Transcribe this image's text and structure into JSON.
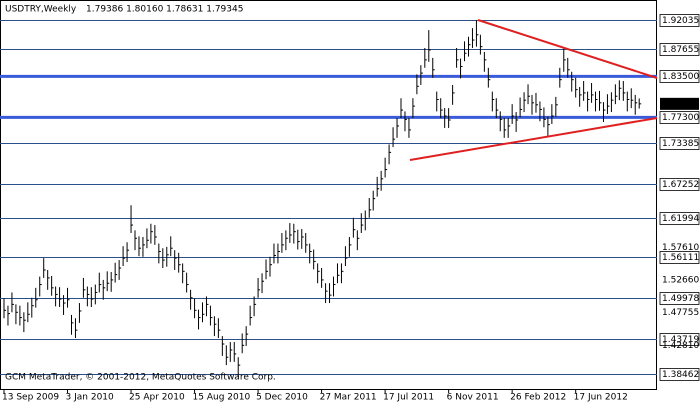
{
  "chart_data": {
    "type": "ohlc",
    "title": "USDTRY,Weekly",
    "subtitle": "1.79386 1.80160 1.78631 1.79345",
    "footer": "GCM MetaTrader, © 2001-2012, MetaQuotes Software Corp.",
    "color": "#000000",
    "grid": true,
    "ylim": [
      1.3604,
      1.9506
    ],
    "yticks": [
      1.92035,
      1.87655,
      {
        "value": 1.835,
        "label": "1.83500"
      },
      {
        "value": 1.773,
        "label": "1.77300"
      },
      1.73385,
      1.67252,
      1.61994,
      1.56111,
      1.49978,
      1.43719,
      1.38462
    ],
    "key_levels": [
      {
        "value": 1.835,
        "label": "1.83500",
        "color": "#3a5bd9"
      },
      {
        "value": 1.773,
        "label": "1.77300",
        "color": "#3a5bd9"
      }
    ],
    "scale_labels": [
      {
        "value": 1.5761,
        "label": "1.57610"
      },
      {
        "value": 1.5266,
        "label": "1.52660"
      },
      {
        "value": 1.47755,
        "label": "1.47755"
      },
      {
        "value": 1.4281,
        "label": "1.42810"
      }
    ],
    "last_price": {
      "value": 1.79345,
      "label": "1.79345"
    },
    "categories": [
      "13 Sep 2009",
      null,
      null,
      null,
      null,
      null,
      null,
      null,
      null,
      null,
      null,
      null,
      null,
      null,
      null,
      null,
      "3 Jan 2010",
      null,
      null,
      null,
      null,
      null,
      null,
      null,
      null,
      null,
      null,
      null,
      null,
      null,
      null,
      null,
      "25 Apr 2010",
      null,
      null,
      null,
      null,
      null,
      null,
      null,
      null,
      null,
      null,
      null,
      null,
      null,
      null,
      null,
      "15 Aug 2010",
      null,
      null,
      null,
      null,
      null,
      null,
      null,
      null,
      null,
      null,
      null,
      null,
      null,
      null,
      null,
      "5 Dec 2010",
      null,
      null,
      null,
      null,
      null,
      null,
      null,
      null,
      null,
      null,
      null,
      null,
      null,
      null,
      null,
      "27 Mar 2011",
      null,
      null,
      null,
      null,
      null,
      null,
      null,
      null,
      null,
      null,
      null,
      null,
      null,
      null,
      null,
      "17 Jul 2011",
      null,
      null,
      null,
      null,
      null,
      null,
      null,
      null,
      null,
      null,
      null,
      null,
      null,
      null,
      null,
      "6 Nov 2011",
      null,
      null,
      null,
      null,
      null,
      null,
      null,
      null,
      null,
      null,
      null,
      null,
      null,
      null,
      null,
      "26 Feb 2012",
      null,
      null,
      null,
      null,
      null,
      null,
      null,
      null,
      null,
      null,
      null,
      null,
      null,
      null,
      null,
      "17 Jun 2012",
      null,
      null,
      null,
      null,
      null,
      null,
      null,
      null,
      null,
      null,
      null,
      null,
      null,
      null,
      null,
      null
    ],
    "high": [
      1.499,
      1.488,
      1.508,
      1.49,
      1.488,
      1.478,
      1.493,
      1.5,
      1.515,
      1.532,
      1.56,
      1.542,
      1.533,
      1.517,
      1.516,
      1.504,
      1.515,
      1.474,
      1.469,
      1.492,
      1.53,
      1.517,
      1.516,
      1.52,
      1.538,
      1.527,
      1.54,
      1.539,
      1.553,
      1.557,
      1.578,
      1.584,
      1.64,
      1.602,
      1.593,
      1.592,
      1.605,
      1.612,
      1.61,
      1.582,
      1.575,
      1.577,
      1.593,
      1.572,
      1.568,
      1.552,
      1.538,
      1.512,
      1.499,
      1.482,
      1.493,
      1.502,
      1.488,
      1.472,
      1.469,
      1.442,
      1.428,
      1.433,
      1.433,
      1.41,
      1.446,
      1.457,
      1.488,
      1.502,
      1.53,
      1.537,
      1.558,
      1.562,
      1.582,
      1.582,
      1.598,
      1.602,
      1.613,
      1.612,
      1.603,
      1.604,
      1.598,
      1.582,
      1.573,
      1.552,
      1.545,
      1.522,
      1.522,
      1.532,
      1.552,
      1.552,
      1.578,
      1.592,
      1.621,
      1.602,
      1.628,
      1.632,
      1.651,
      1.662,
      1.683,
      1.692,
      1.712,
      1.732,
      1.758,
      1.772,
      1.802,
      1.782,
      1.772,
      1.802,
      1.838,
      1.852,
      1.878,
      1.905,
      1.863,
      1.812,
      1.802,
      1.787,
      1.787,
      1.822,
      1.878,
      1.862,
      1.888,
      1.895,
      1.908,
      1.92,
      1.898,
      1.872,
      1.848,
      1.812,
      1.802,
      1.782,
      1.772,
      1.772,
      1.793,
      1.781,
      1.803,
      1.811,
      1.823,
      1.807,
      1.81,
      1.797,
      1.788,
      1.774,
      1.793,
      1.804,
      1.848,
      1.877,
      1.863,
      1.842,
      1.833,
      1.819,
      1.828,
      1.812,
      1.825,
      1.812,
      1.813,
      1.796,
      1.808,
      1.811,
      1.823,
      1.829,
      1.828,
      1.812,
      1.817,
      1.807,
      1.8016
    ],
    "low": [
      1.469,
      1.458,
      1.478,
      1.46,
      1.458,
      1.448,
      1.463,
      1.47,
      1.485,
      1.502,
      1.53,
      1.512,
      1.503,
      1.487,
      1.486,
      1.474,
      1.485,
      1.444,
      1.439,
      1.462,
      1.5,
      1.487,
      1.486,
      1.49,
      1.508,
      1.497,
      1.51,
      1.509,
      1.523,
      1.527,
      1.548,
      1.554,
      1.598,
      1.572,
      1.563,
      1.562,
      1.575,
      1.582,
      1.58,
      1.552,
      1.545,
      1.547,
      1.563,
      1.542,
      1.538,
      1.522,
      1.508,
      1.482,
      1.469,
      1.452,
      1.463,
      1.472,
      1.458,
      1.442,
      1.439,
      1.412,
      1.398,
      1.403,
      1.403,
      1.38,
      1.416,
      1.427,
      1.458,
      1.472,
      1.5,
      1.507,
      1.528,
      1.532,
      1.552,
      1.552,
      1.568,
      1.572,
      1.583,
      1.582,
      1.573,
      1.574,
      1.568,
      1.552,
      1.543,
      1.522,
      1.515,
      1.492,
      1.492,
      1.502,
      1.522,
      1.522,
      1.548,
      1.562,
      1.591,
      1.572,
      1.598,
      1.602,
      1.621,
      1.632,
      1.653,
      1.662,
      1.682,
      1.702,
      1.728,
      1.742,
      1.772,
      1.752,
      1.742,
      1.772,
      1.808,
      1.822,
      1.848,
      1.857,
      1.833,
      1.782,
      1.772,
      1.757,
      1.757,
      1.792,
      1.848,
      1.832,
      1.858,
      1.865,
      1.878,
      1.88,
      1.868,
      1.842,
      1.818,
      1.782,
      1.772,
      1.752,
      1.742,
      1.742,
      1.763,
      1.751,
      1.773,
      1.781,
      1.793,
      1.777,
      1.78,
      1.767,
      1.758,
      1.744,
      1.763,
      1.774,
      1.818,
      1.842,
      1.833,
      1.812,
      1.803,
      1.789,
      1.798,
      1.782,
      1.795,
      1.782,
      1.783,
      1.766,
      1.778,
      1.781,
      1.793,
      1.799,
      1.798,
      1.782,
      1.787,
      1.777,
      1.78631
    ],
    "close": [
      1.481,
      1.476,
      1.49,
      1.478,
      1.47,
      1.466,
      1.475,
      1.488,
      1.497,
      1.52,
      1.542,
      1.53,
      1.515,
      1.505,
      1.498,
      1.492,
      1.497,
      1.462,
      1.451,
      1.48,
      1.512,
      1.505,
      1.498,
      1.508,
      1.52,
      1.515,
      1.522,
      1.527,
      1.535,
      1.545,
      1.56,
      1.572,
      1.61,
      1.59,
      1.575,
      1.58,
      1.587,
      1.6,
      1.592,
      1.57,
      1.557,
      1.565,
      1.575,
      1.56,
      1.55,
      1.54,
      1.52,
      1.5,
      1.481,
      1.47,
      1.475,
      1.49,
      1.47,
      1.46,
      1.451,
      1.43,
      1.41,
      1.421,
      1.415,
      1.398,
      1.428,
      1.445,
      1.47,
      1.49,
      1.512,
      1.525,
      1.54,
      1.55,
      1.564,
      1.57,
      1.58,
      1.59,
      1.595,
      1.6,
      1.585,
      1.592,
      1.58,
      1.57,
      1.555,
      1.54,
      1.527,
      1.51,
      1.504,
      1.52,
      1.534,
      1.54,
      1.56,
      1.58,
      1.603,
      1.59,
      1.61,
      1.62,
      1.633,
      1.65,
      1.665,
      1.68,
      1.694,
      1.72,
      1.74,
      1.76,
      1.784,
      1.77,
      1.754,
      1.79,
      1.82,
      1.84,
      1.86,
      1.875,
      1.845,
      1.8,
      1.784,
      1.775,
      1.769,
      1.81,
      1.86,
      1.85,
      1.87,
      1.883,
      1.89,
      1.898,
      1.88,
      1.86,
      1.83,
      1.8,
      1.784,
      1.77,
      1.754,
      1.76,
      1.775,
      1.769,
      1.785,
      1.799,
      1.805,
      1.795,
      1.792,
      1.785,
      1.77,
      1.762,
      1.775,
      1.792,
      1.83,
      1.86,
      1.845,
      1.83,
      1.815,
      1.807,
      1.81,
      1.8,
      1.807,
      1.8,
      1.795,
      1.784,
      1.79,
      1.799,
      1.805,
      1.817,
      1.81,
      1.8,
      1.799,
      1.795,
      1.79345
    ]
  }
}
